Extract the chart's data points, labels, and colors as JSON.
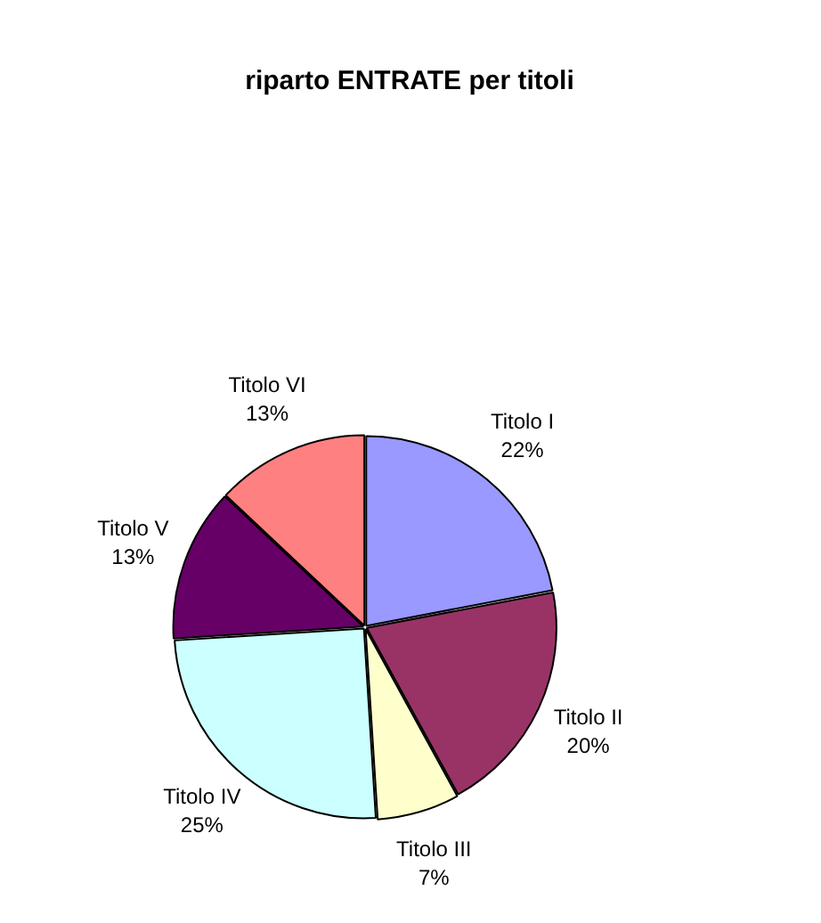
{
  "chart_data": {
    "type": "pie",
    "title": "riparto ENTRATE per titoli",
    "categories": [
      "Titolo I",
      "Titolo II",
      "Titolo III",
      "Titolo IV",
      "Titolo V",
      "Titolo VI"
    ],
    "values": [
      22,
      20,
      7,
      25,
      13,
      13
    ],
    "value_labels": [
      "22%",
      "20%",
      "7%",
      "25%",
      "13%",
      "13%"
    ],
    "colors": [
      "#9999ff",
      "#993366",
      "#ffffcc",
      "#ccffff",
      "#660066",
      "#ff8080"
    ]
  }
}
